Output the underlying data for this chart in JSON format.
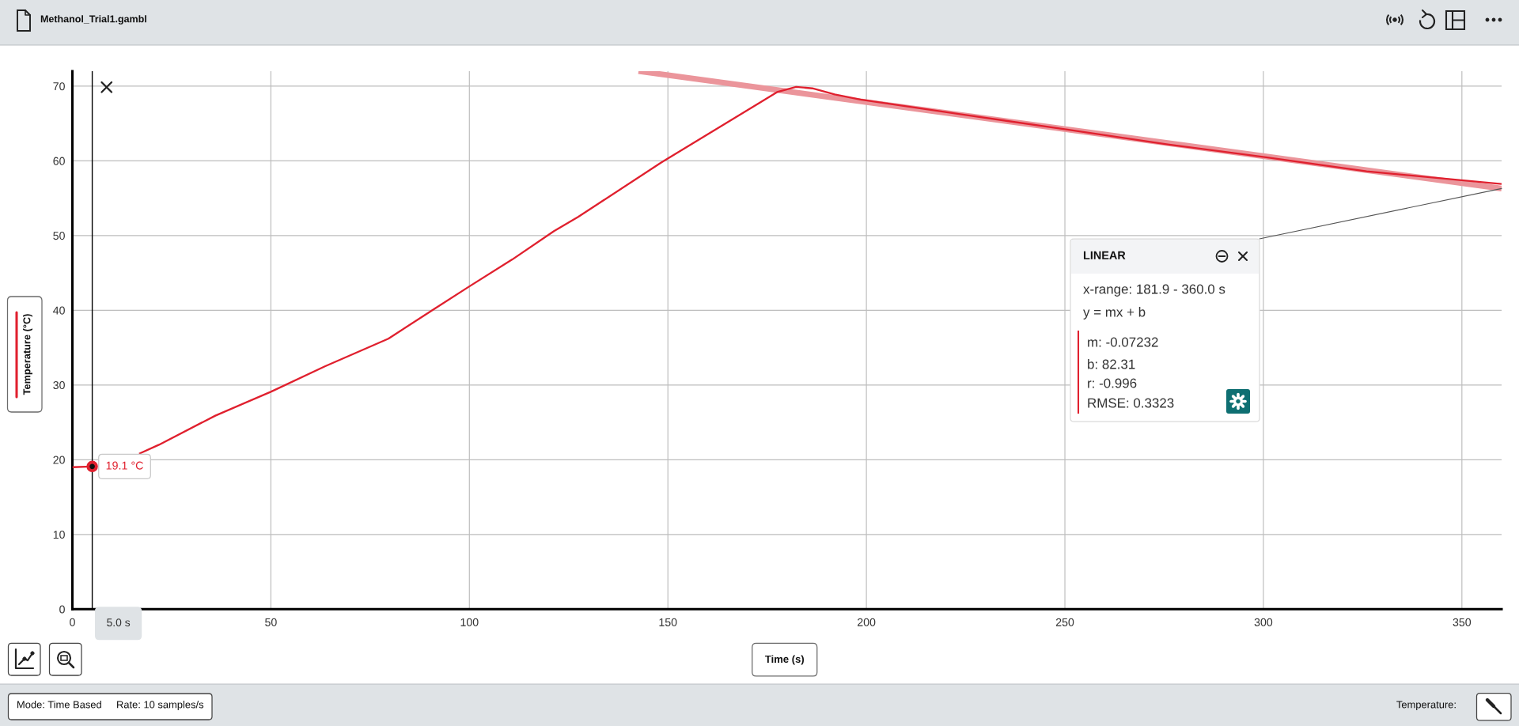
{
  "chart_data": {
    "type": "line",
    "title": "Methanol_Trial1.gambl",
    "xlabel": "Time (s)",
    "ylabel": "Temperature (°C)",
    "xlim": [
      0,
      360
    ],
    "ylim": [
      0,
      72
    ],
    "xticks": [
      0,
      50,
      100,
      150,
      200,
      250,
      300,
      350
    ],
    "yticks": [
      0,
      10,
      20,
      30,
      40,
      50,
      60,
      70
    ],
    "grid": true,
    "series": [
      {
        "color": "#e0202e",
        "x": [
          0,
          5,
          10,
          16.8,
          21.8,
          36.0,
          50.0,
          63.6,
          79.6,
          91.2,
          100,
          110.8,
          121.3,
          127.4,
          148.4,
          163.0,
          172.6,
          177.5,
          182.3,
          186.4,
          192.0,
          198.5,
          224.3,
          250.3,
          275.9,
          300.3,
          326.0,
          360
        ],
        "values": [
          19.0,
          19.1,
          null,
          20.8,
          22.0,
          25.9,
          29.1,
          32.5,
          36.2,
          40.2,
          43.2,
          46.8,
          50.6,
          52.5,
          59.8,
          64.5,
          67.6,
          69.2,
          69.9,
          69.7,
          68.9,
          68.2,
          66.2,
          64.2,
          62.2,
          60.5,
          58.6,
          56.9
        ]
      },
      {
        "type": "line",
        "color": "#eb959b",
        "x": [
          142.6,
          360
        ],
        "values": [
          72.0,
          56.3
        ]
      }
    ],
    "ref_lines": [
      {
        "axis": "x",
        "value": 5,
        "label": "5.0 s",
        "color": "#000000"
      }
    ],
    "annotations": [
      {
        "text": "19.1 °C",
        "x": 5,
        "y": 19.1
      },
      "LINEAR",
      "x-range: 181.9 - 360.0 s",
      "y = mx + b",
      "m: -0.07232",
      "b: 82.31",
      "r: -0.996",
      "RMSE: 0.3323",
      "Mode: Time Based",
      "Rate: 10 samples/s",
      "Temperature:"
    ]
  }
}
